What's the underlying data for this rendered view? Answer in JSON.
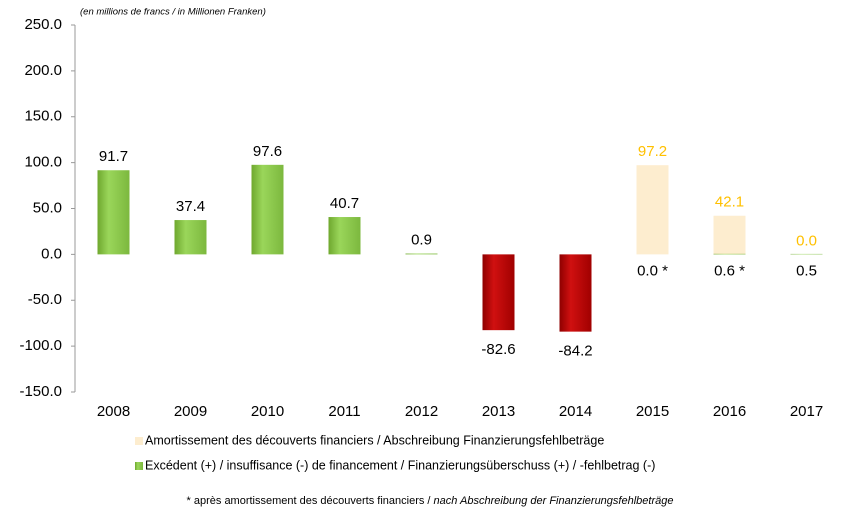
{
  "chart_data": {
    "type": "bar",
    "subtitle": "(en millions de francs / in Millionen Franken)",
    "categories": [
      "2008",
      "2009",
      "2010",
      "2011",
      "2012",
      "2013",
      "2014",
      "2015",
      "2016",
      "2017"
    ],
    "series": [
      {
        "name": "Amortissement des découverts financiers / Abschreibung Finanzierungsfehlbeträge",
        "color": "#fdedcf",
        "label_color": "#ffc000",
        "values": [
          null,
          null,
          null,
          null,
          null,
          null,
          null,
          97.2,
          42.1,
          0.0
        ],
        "value_labels": [
          null,
          null,
          null,
          null,
          null,
          null,
          null,
          "97.2",
          "42.1",
          "0.0"
        ]
      },
      {
        "name": "Excédent (+) / insuffisance (-) de financement / Finanzierungsüberschuss (+) / -fehlbetrag (-)",
        "color": "#92d050",
        "negative_color": "#c00000",
        "label_color": "#000000",
        "values": [
          91.7,
          37.4,
          97.6,
          40.7,
          0.9,
          -82.6,
          -84.2,
          0.0,
          0.6,
          0.5
        ],
        "value_labels": [
          "91.7",
          "37.4",
          "97.6",
          "40.7",
          "0.9",
          "-82.6",
          "-84.2",
          "0.0 *",
          "0.6 *",
          "0.5"
        ]
      }
    ],
    "ylim": [
      -150,
      250
    ],
    "yticks": [
      {
        "value": -150,
        "label": "-150.0"
      },
      {
        "value": -100,
        "label": "-100.0"
      },
      {
        "value": -50,
        "label": "-50.0"
      },
      {
        "value": 0,
        "label": "0.0"
      },
      {
        "value": 50,
        "label": "50.0"
      },
      {
        "value": 100,
        "label": "100.0"
      },
      {
        "value": 150,
        "label": "150.0"
      },
      {
        "value": 200,
        "label": "200.0"
      },
      {
        "value": 250,
        "label": "250.0"
      }
    ],
    "grid": false,
    "footnote": [
      "* après amortissement des découverts financiers / ",
      "nach Abschreibung der Finanzierungsfehlbeträge"
    ]
  }
}
